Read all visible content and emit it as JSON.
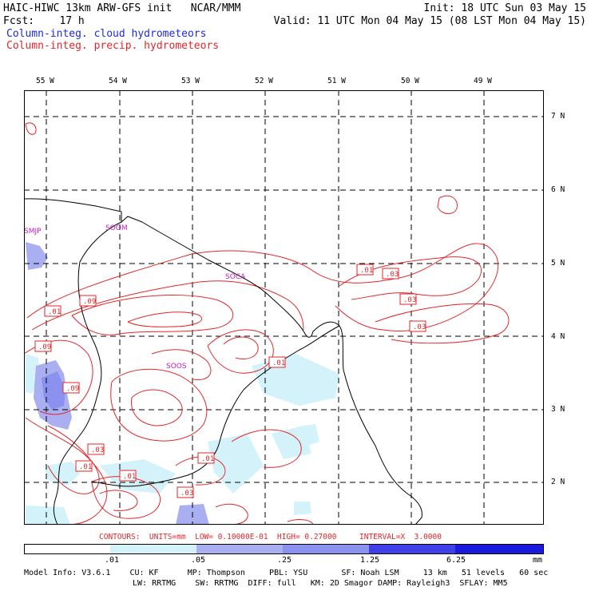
{
  "header": {
    "line1_left": "HAIC-HIWC 13km ARW-GFS init   NCAR/MMM",
    "line1_right": "Init: 18 UTC Sun 03 May 15",
    "line2_left": "Fcst:    17 h",
    "line2_right": "Valid: 11 UTC Mon 04 May 15 (08 LST Mon 04 May 15)",
    "line3": "Column-integ. cloud hydrometeors",
    "line4": "Column-integ. precip. hydrometeors"
  },
  "colors": {
    "cloud_label": "#1f2bd6",
    "precip_label": "#e3272b",
    "contour": "#e3272b",
    "station": "#c020c0",
    "fill_1": "#d4f2fa",
    "fill_2": "#a9aff0",
    "fill_3": "#8a91ee",
    "fill_4": "#4040e8",
    "fill_5": "#1a1adc"
  },
  "map": {
    "lon_labels": [
      "55 W",
      "54 W",
      "53 W",
      "52 W",
      "51 W",
      "50 W",
      "49 W"
    ],
    "lat_labels": [
      "7 N",
      "6 N",
      "5 N",
      "4 N",
      "3 N",
      "2 N"
    ],
    "stations": [
      "SMJP",
      "SOOM",
      "SOCA",
      "SOOS"
    ],
    "contour_labels": [
      ".01",
      ".03",
      ".03",
      ".03",
      ".09",
      ".01",
      ".09",
      ".09",
      ".01",
      ".03",
      ".01",
      ".01",
      ".01",
      ".03"
    ]
  },
  "contour_info": "CONTOURS:  UNITS=mm  LOW= 0.10000E-01  HIGH= 0.27000     INTERVAL=X  3.0000",
  "colorbar": {
    "labels": [
      ".01",
      ".05",
      ".25",
      "1.25",
      "6.25"
    ],
    "units": "mm",
    "colors": [
      "#ffffff",
      "#d4f2fa",
      "#a9aff0",
      "#8a91ee",
      "#4040e8",
      "#1a1adc"
    ]
  },
  "footer": {
    "line1": "Model Info: V3.6.1    CU: KF      MP: Thompson     PBL: YSU       SF: Noah LSM     13 km   51 levels   60 sec",
    "line2": "LW: RRTMG    SW: RRTMG  DIFF: full   KM: 2D Smagor DAMP: Rayleigh3  SFLAY: MM5"
  }
}
